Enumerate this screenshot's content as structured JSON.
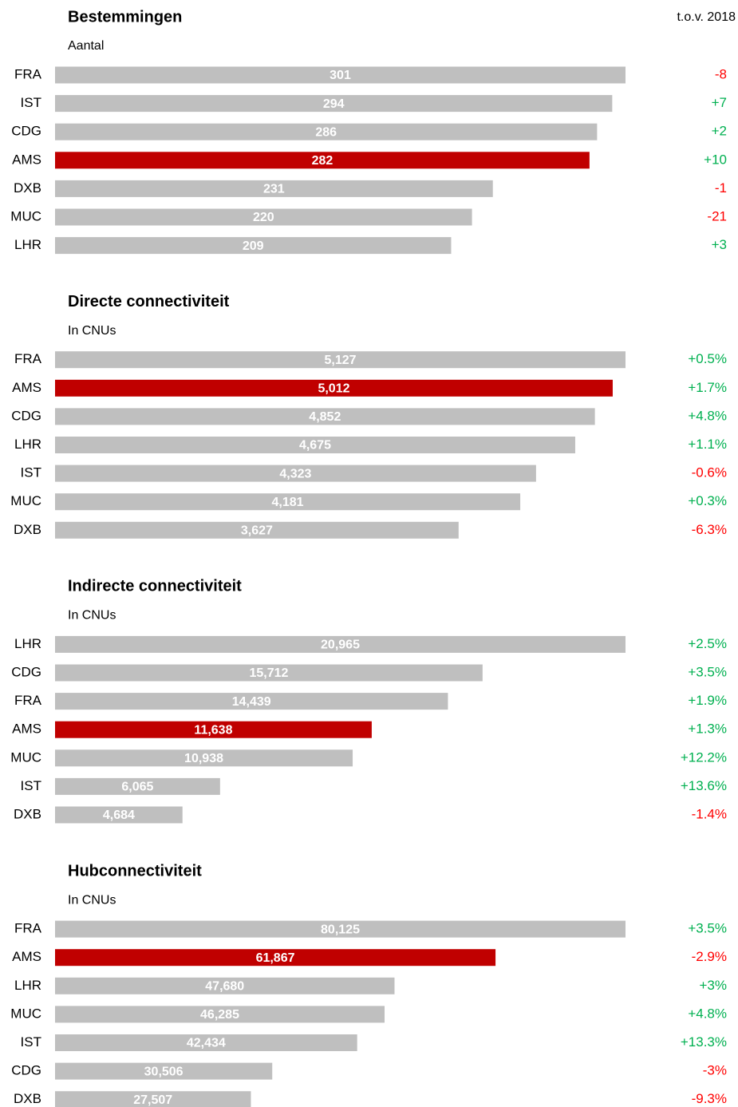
{
  "comparison_label": "t.o.v. 2018",
  "chart_data": [
    {
      "type": "bar",
      "title": "Bestemmingen",
      "subtitle": "Aantal",
      "categories": [
        "FRA",
        "IST",
        "CDG",
        "AMS",
        "DXB",
        "MUC",
        "LHR"
      ],
      "values": [
        301,
        294,
        286,
        282,
        231,
        220,
        209
      ],
      "changes": [
        "-8",
        "+7",
        "+2",
        "+10",
        "-1",
        "-21",
        "+3"
      ],
      "xlim": [
        0,
        301
      ],
      "color": "#bfbfbf",
      "highlight": "AMS",
      "highlight_color": "#c00000",
      "positive_color": "#00b050",
      "negative_color": "#ff0000"
    },
    {
      "type": "bar",
      "title": "Directe connectiviteit",
      "subtitle": "In CNUs",
      "categories": [
        "FRA",
        "AMS",
        "CDG",
        "LHR",
        "IST",
        "MUC",
        "DXB"
      ],
      "values": [
        5127,
        5012,
        4852,
        4675,
        4323,
        4181,
        3627
      ],
      "value_labels": [
        "5,127",
        "5,012",
        "4,852",
        "4,675",
        "4,323",
        "4,181",
        "3,627"
      ],
      "changes": [
        "+0.5%",
        "+1.7%",
        "+4.8%",
        "+1.1%",
        "-0.6%",
        "+0.3%",
        "-6.3%"
      ],
      "xlim": [
        0,
        5127
      ],
      "color": "#bfbfbf",
      "highlight": "AMS",
      "highlight_color": "#c00000",
      "positive_color": "#00b050",
      "negative_color": "#ff0000"
    },
    {
      "type": "bar",
      "title": "Indirecte connectiviteit",
      "subtitle": "In CNUs",
      "categories": [
        "LHR",
        "CDG",
        "FRA",
        "AMS",
        "MUC",
        "IST",
        "DXB"
      ],
      "values": [
        20965,
        15712,
        14439,
        11638,
        10938,
        6065,
        4684
      ],
      "value_labels": [
        "20,965",
        "15,712",
        "14,439",
        "11,638",
        "10,938",
        "6,065",
        "4,684"
      ],
      "changes": [
        "+2.5%",
        "+3.5%",
        "+1.9%",
        "+1.3%",
        "+12.2%",
        "+13.6%",
        "-1.4%"
      ],
      "xlim": [
        0,
        20965
      ],
      "color": "#bfbfbf",
      "highlight": "AMS",
      "highlight_color": "#c00000",
      "positive_color": "#00b050",
      "negative_color": "#ff0000"
    },
    {
      "type": "bar",
      "title": "Hubconnectiviteit",
      "subtitle": "In CNUs",
      "categories": [
        "FRA",
        "AMS",
        "LHR",
        "MUC",
        "IST",
        "CDG",
        "DXB"
      ],
      "values": [
        80125,
        61867,
        47680,
        46285,
        42434,
        30506,
        27507
      ],
      "value_labels": [
        "80,125",
        "61,867",
        "47,680",
        "46,285",
        "42,434",
        "30,506",
        "27,507"
      ],
      "changes": [
        "+3.5%",
        "-2.9%",
        "+3%",
        "+4.8%",
        "+13.3%",
        "-3%",
        "-9.3%"
      ],
      "xlim": [
        0,
        80125
      ],
      "color": "#bfbfbf",
      "highlight": "AMS",
      "highlight_color": "#c00000",
      "positive_color": "#00b050",
      "negative_color": "#ff0000"
    }
  ]
}
